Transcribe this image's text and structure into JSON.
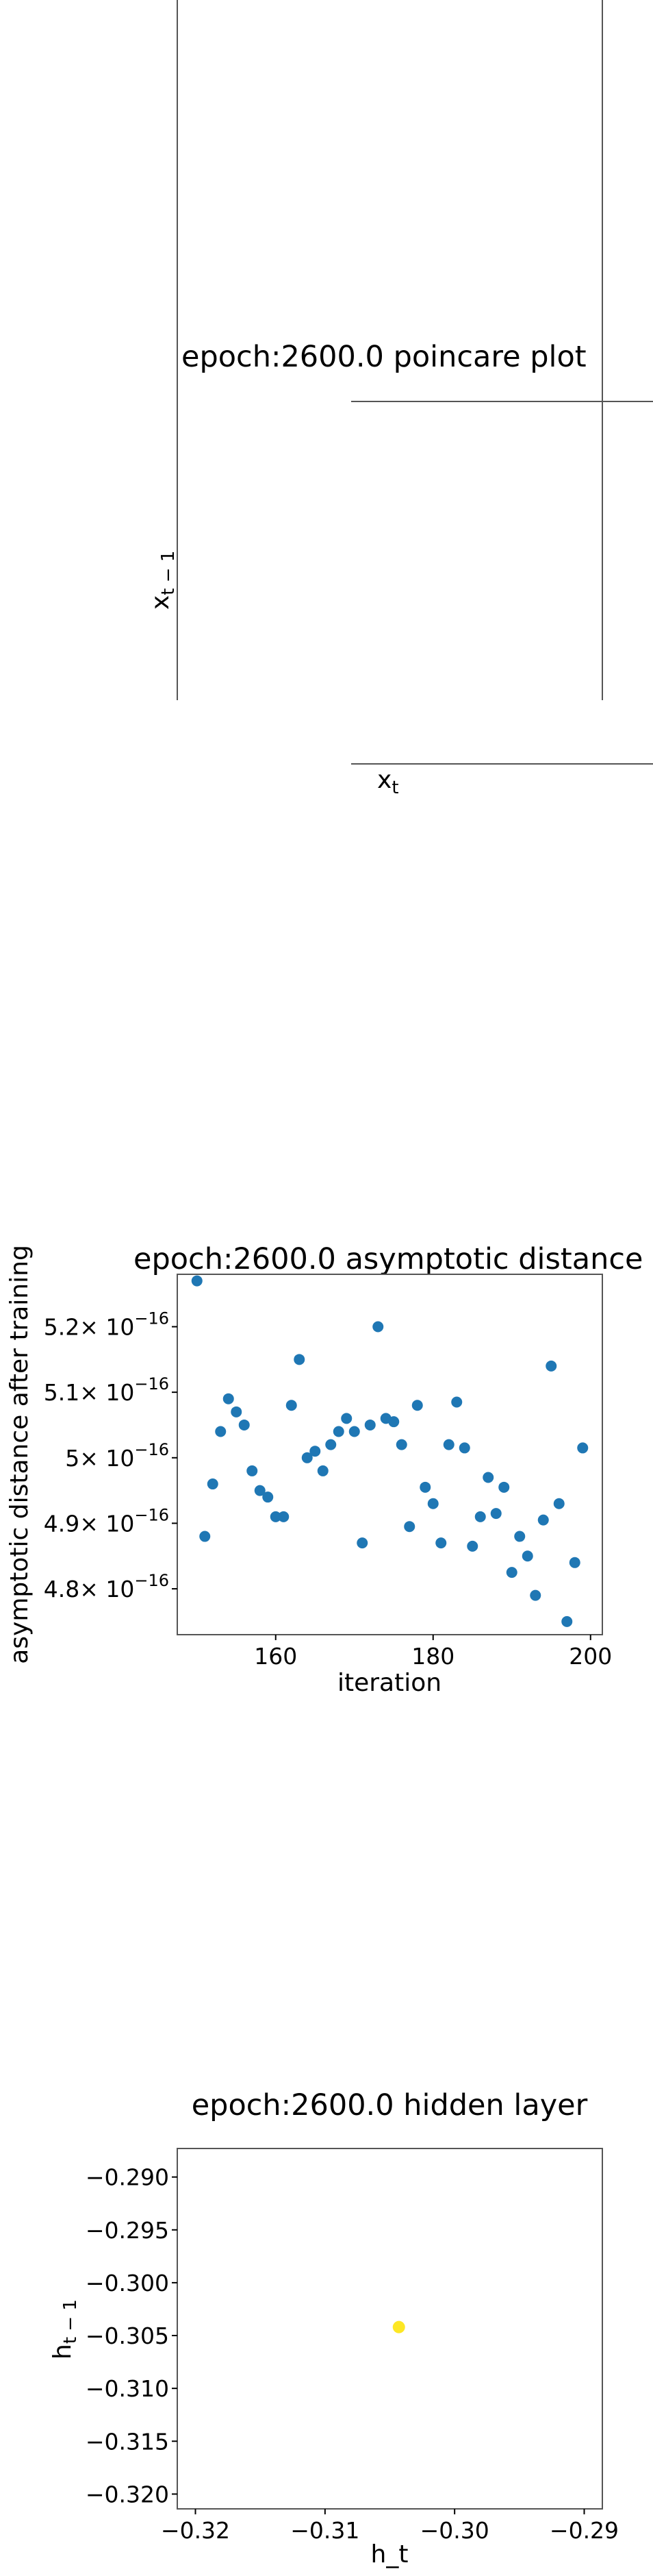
{
  "poincare": {
    "title": "epoch:2600.0 poincare plot",
    "xlabel_base": "x",
    "xlabel_sub": "t",
    "ylabel_base": "x",
    "ylabel_sub": "t − 1"
  },
  "asymptotic": {
    "title": "epoch:2600.0 asymptotic distance",
    "xlabel": "iteration",
    "ylabel": "asymptotic distance after training",
    "xticks": [
      "160",
      "180",
      "200"
    ],
    "yticks": [
      {
        "mant": "5.2",
        "exp": "−16"
      },
      {
        "mant": "5.1",
        "exp": "−16"
      },
      {
        "mant": "5",
        "exp": "−16"
      },
      {
        "mant": "4.9",
        "exp": "−16"
      },
      {
        "mant": "4.8",
        "exp": "−16"
      }
    ],
    "ytick_base": "× 10"
  },
  "hidden": {
    "title": "epoch:2600.0 hidden layer",
    "xlabel": "h_t",
    "ylabel_base": "h",
    "ylabel_sub": "t − 1",
    "xticks": [
      "−0.32",
      "−0.31",
      "−0.30",
      "−0.29"
    ],
    "yticks": [
      "−0.290",
      "−0.295",
      "−0.300",
      "−0.305",
      "−0.310",
      "−0.315",
      "−0.320"
    ]
  },
  "chart_data": [
    {
      "type": "line",
      "title": "epoch:2600.0 poincare plot",
      "xlabel": "x_t",
      "ylabel": "x_{t-1}",
      "series": []
    },
    {
      "type": "scatter",
      "title": "epoch:2600.0 asymptotic distance",
      "xlabel": "iteration",
      "ylabel": "asymptotic distance after training",
      "xlim": [
        147.5,
        201.5
      ],
      "ylim": [
        4.73,
        5.28
      ],
      "y_scale_factor": "1e-16",
      "color": "#1f77b4",
      "x": [
        150,
        151,
        152,
        153,
        154,
        155,
        156,
        157,
        158,
        159,
        160,
        161,
        162,
        163,
        164,
        165,
        166,
        167,
        168,
        169,
        170,
        171,
        172,
        173,
        174,
        175,
        176,
        177,
        178,
        179,
        180,
        181,
        182,
        183,
        184,
        185,
        186,
        187,
        188,
        189,
        190,
        191,
        192,
        193,
        194,
        195,
        196,
        197,
        198,
        199
      ],
      "y": [
        5.27,
        4.88,
        4.96,
        5.04,
        5.09,
        5.07,
        5.05,
        4.98,
        4.95,
        4.94,
        4.91,
        4.91,
        5.08,
        5.15,
        5.0,
        5.01,
        4.98,
        5.02,
        5.04,
        5.06,
        5.04,
        4.87,
        5.05,
        5.2,
        5.06,
        5.055,
        5.02,
        4.895,
        5.08,
        4.955,
        4.93,
        4.87,
        5.02,
        5.085,
        5.015,
        4.865,
        4.91,
        4.97,
        4.915,
        4.955,
        4.825,
        4.88,
        4.85,
        4.79,
        4.905,
        5.14,
        4.93,
        4.75,
        4.84,
        5.015
      ]
    },
    {
      "type": "scatter",
      "title": "epoch:2600.0 hidden layer",
      "xlabel": "h_t",
      "ylabel": "h_{t-1}",
      "xlim": [
        -0.3214,
        -0.2886
      ],
      "ylim": [
        -0.3214,
        -0.2873
      ],
      "color": "#fde725",
      "x": [
        -0.3043
      ],
      "y": [
        -0.3042
      ]
    }
  ]
}
